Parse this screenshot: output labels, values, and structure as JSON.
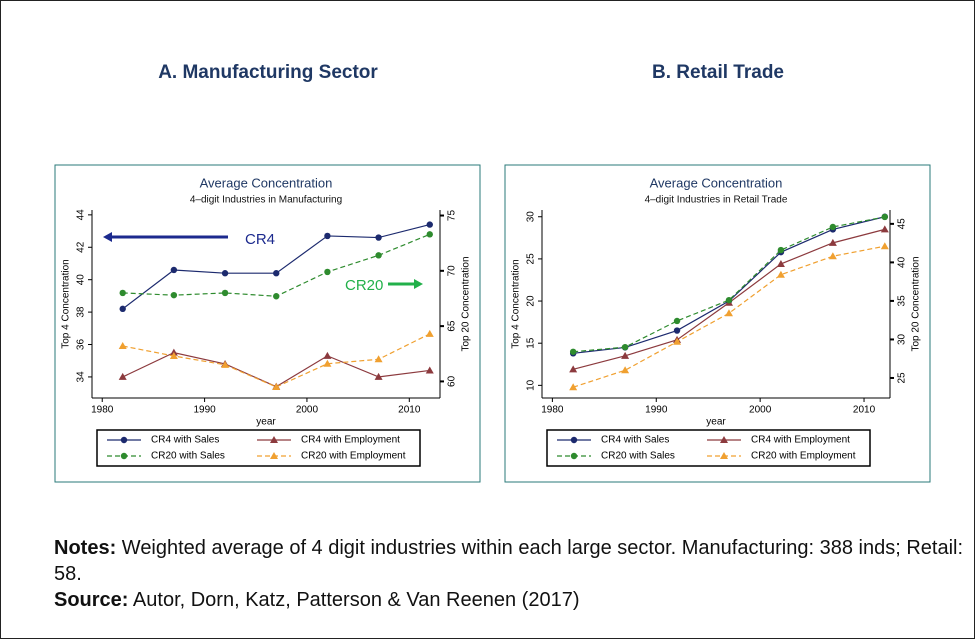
{
  "headings": [
    "A. Manufacturing Sector",
    "B. Retail Trade"
  ],
  "notes": {
    "label": "Notes:",
    "text": "Weighted average of 4 digit industries within each large sector. Manufacturing: 388 inds; Retail: 58."
  },
  "source": {
    "label": "Source:",
    "text": "Autor, Dorn, Katz, Patterson & Van Reenen (2017)"
  },
  "chart_data": [
    {
      "type": "line",
      "title": "Average Concentration",
      "subtitle": "4–digit Industries in Manufacturing",
      "x_label": "year",
      "y_label": "Top 4 Concentration",
      "y2_label": "Top 20 Concentration",
      "x": [
        1982,
        1987,
        1992,
        1997,
        2002,
        2007,
        2012
      ],
      "xlim": [
        1979,
        2013
      ],
      "xticks": [
        1980,
        1990,
        2000,
        2010
      ],
      "ylim": [
        32.7,
        44.3
      ],
      "yticks": [
        34,
        36,
        38,
        40,
        42,
        44
      ],
      "y2lim": [
        58.5,
        75.5
      ],
      "y2ticks": [
        60,
        65,
        70,
        75
      ],
      "series": [
        {
          "name": "CR4 with Sales",
          "color": "#1c2a6e",
          "marker": "circle",
          "dashed": false,
          "values": [
            38.2,
            40.6,
            40.4,
            40.4,
            42.7,
            42.6,
            43.4
          ]
        },
        {
          "name": "CR4 with Employment",
          "color": "#8c3a3e",
          "marker": "triangle",
          "dashed": false,
          "values": [
            34.0,
            35.5,
            34.8,
            33.4,
            35.3,
            34.0,
            34.4
          ]
        },
        {
          "name": "CR20 with Sales",
          "color": "#2e8b2e",
          "marker": "circle",
          "dashed": true,
          "axis": "y2",
          "values": [
            68.0,
            67.8,
            68.0,
            67.7,
            69.9,
            71.4,
            73.3
          ]
        },
        {
          "name": "CR20 with Employment",
          "color": "#f0a030",
          "marker": "triangle",
          "dashed": true,
          "axis": "y2",
          "values": [
            63.2,
            62.3,
            61.5,
            59.5,
            61.6,
            62.0,
            64.3
          ]
        }
      ],
      "annotations": [
        {
          "text": "CR4",
          "color": "#1c2a8e"
        },
        {
          "text": "CR20",
          "color": "#22b04a"
        }
      ]
    },
    {
      "type": "line",
      "title": "Average Concentration",
      "subtitle": "4–digit Industries in Retail Trade",
      "x_label": "year",
      "y_label": "Top 4 Concentration",
      "y2_label": "Top 20 Concentration",
      "x": [
        1982,
        1987,
        1992,
        1997,
        2002,
        2007,
        2012
      ],
      "xlim": [
        1979,
        2012.5
      ],
      "xticks": [
        1980,
        1990,
        2000,
        2010
      ],
      "ylim": [
        8.5,
        30.8
      ],
      "yticks": [
        10,
        15,
        20,
        25,
        30
      ],
      "y2lim": [
        22.4,
        46.8
      ],
      "y2ticks": [
        25,
        30,
        35,
        40,
        45
      ],
      "series": [
        {
          "name": "CR4 with Sales",
          "color": "#1c2a6e",
          "marker": "circle",
          "dashed": false,
          "values": [
            13.8,
            14.5,
            16.5,
            20.0,
            25.8,
            28.5,
            30.0
          ]
        },
        {
          "name": "CR4 with Employment",
          "color": "#8c3a3e",
          "marker": "triangle",
          "dashed": false,
          "values": [
            11.9,
            13.5,
            15.4,
            19.8,
            24.4,
            26.9,
            28.5
          ]
        },
        {
          "name": "CR20 with Sales",
          "color": "#2e8b2e",
          "marker": "circle",
          "dashed": true,
          "axis": "y2",
          "values": [
            28.4,
            29.0,
            32.4,
            35.1,
            41.6,
            44.6,
            45.9
          ]
        },
        {
          "name": "CR20 with Employment",
          "color": "#f0a030",
          "marker": "triangle",
          "dashed": true,
          "axis": "y2",
          "values": [
            23.8,
            26.0,
            29.7,
            33.4,
            38.4,
            40.8,
            42.1
          ]
        }
      ]
    }
  ]
}
